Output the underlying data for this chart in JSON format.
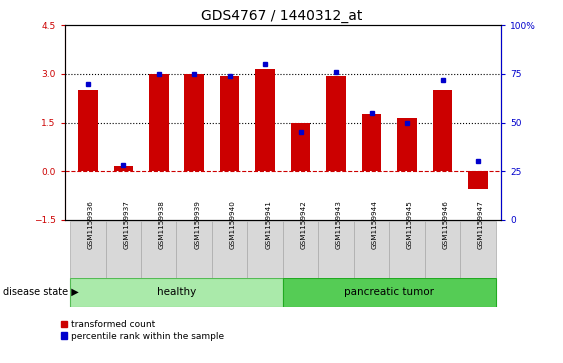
{
  "title": "GDS4767 / 1440312_at",
  "samples": [
    "GSM1159936",
    "GSM1159937",
    "GSM1159938",
    "GSM1159939",
    "GSM1159940",
    "GSM1159941",
    "GSM1159942",
    "GSM1159943",
    "GSM1159944",
    "GSM1159945",
    "GSM1159946",
    "GSM1159947"
  ],
  "red_values": [
    2.5,
    0.15,
    3.0,
    3.0,
    2.95,
    3.15,
    1.48,
    2.95,
    1.75,
    1.65,
    2.5,
    -0.55
  ],
  "blue_values_pct": [
    70,
    28,
    75,
    75,
    74,
    80,
    45,
    76,
    55,
    50,
    72,
    30
  ],
  "ylim_left": [
    -1.5,
    4.5
  ],
  "ylim_right": [
    0,
    100
  ],
  "yticks_left": [
    -1.5,
    0,
    1.5,
    3.0,
    4.5
  ],
  "yticks_right": [
    0,
    25,
    50,
    75,
    100
  ],
  "hlines": [
    1.5,
    3.0
  ],
  "healthy_count": 6,
  "pancreatic_count": 6,
  "healthy_label": "healthy",
  "pancreatic_label": "pancreatic tumor",
  "disease_label": "disease state",
  "legend_red": "transformed count",
  "legend_blue": "percentile rank within the sample",
  "bar_color_red": "#cc0000",
  "bar_color_blue": "#0000cc",
  "healthy_color": "#aaeaaa",
  "pancreatic_color": "#55cc55",
  "zero_line_color": "#cc0000",
  "title_fontsize": 10,
  "tick_fontsize": 6.5,
  "bar_width": 0.55
}
